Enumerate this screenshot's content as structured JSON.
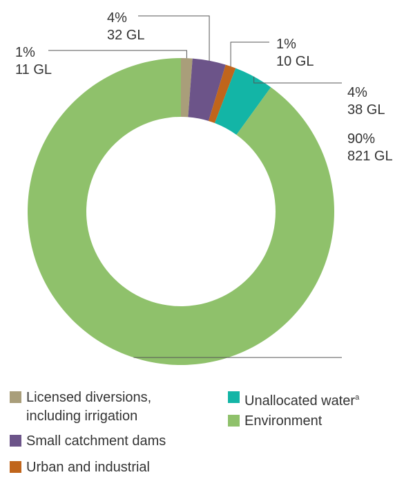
{
  "chart_data": {
    "type": "donut",
    "series": [
      {
        "name": "Licensed diversions, including irrigation",
        "color": "#a99e7a",
        "values": [
          11
        ],
        "value_labels": [
          "11 GL"
        ],
        "percentages": [
          1
        ],
        "percentage_labels": [
          "1%"
        ]
      },
      {
        "name": "Small catchment dams",
        "color": "#6c5489",
        "values": [
          32
        ],
        "value_labels": [
          "32 GL"
        ],
        "percentages": [
          4
        ],
        "percentage_labels": [
          "4%"
        ]
      },
      {
        "name": "Urban and industrial",
        "color": "#c0651b",
        "values": [
          10
        ],
        "value_labels": [
          "10 GL"
        ],
        "percentages": [
          1
        ],
        "percentage_labels": [
          "1%"
        ]
      },
      {
        "name": "Unallocated water",
        "footnote": "a",
        "color": "#13b5a6",
        "values": [
          38
        ],
        "value_labels": [
          "38 GL"
        ],
        "percentages": [
          4
        ],
        "percentage_labels": [
          "4%"
        ]
      },
      {
        "name": "Environment",
        "color": "#8fc16b",
        "values": [
          821
        ],
        "value_labels": [
          "821 GL"
        ],
        "percentages": [
          90
        ],
        "percentage_labels": [
          "90%"
        ]
      }
    ]
  }
}
